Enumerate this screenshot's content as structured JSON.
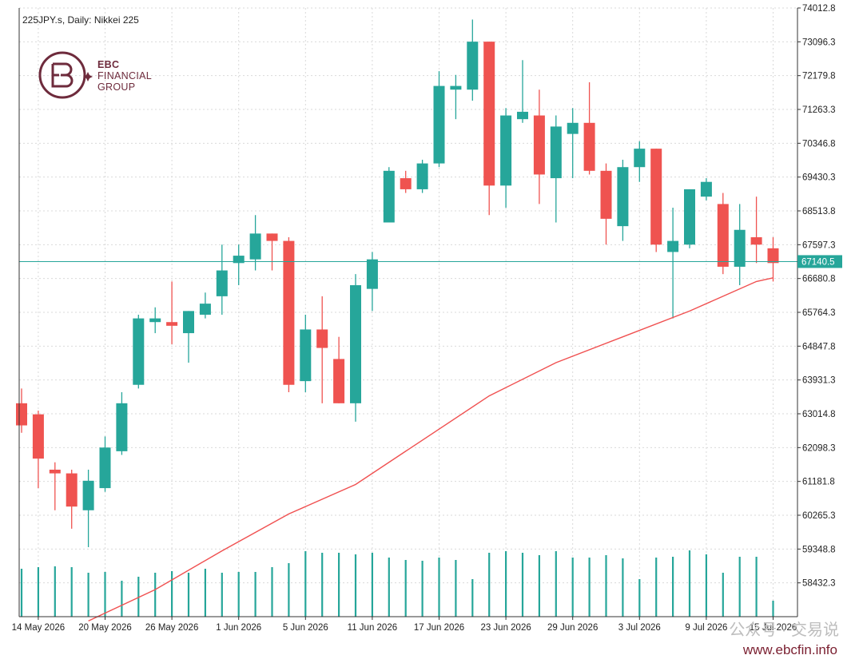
{
  "chart_title": "225JPY.s, Daily:  Nikkei 225",
  "logo": {
    "line1": "EBC",
    "line2": "FINANCIAL",
    "line3": "GROUP"
  },
  "watermark": "公众号 · 交易说",
  "website": "www.ebcfin.info",
  "colors": {
    "bull": "#26a69a",
    "bear": "#ef5350",
    "ma": "#f05050",
    "price_line": "#26a69a",
    "volume": "#26a69a"
  },
  "chart_data": {
    "type": "candlestick",
    "symbol": "225JPY.s",
    "timeframe": "Daily",
    "instrument": "Nikkei 225",
    "current_price": "67140.5",
    "ylim": [
      57516,
      74013
    ],
    "y_ticks": [
      "74012.8",
      "73096.3",
      "72179.8",
      "71263.3",
      "70346.8",
      "69430.3",
      "68513.8",
      "67597.3",
      "66680.8",
      "65764.3",
      "64847.8",
      "63931.3",
      "63014.8",
      "62098.3",
      "61181.8",
      "60265.3",
      "59348.8",
      "58432.3"
    ],
    "x_ticks": [
      "14 May 2026",
      "20 May 2026",
      "26 May 2026",
      "1 Jun 2026",
      "5 Jun 2026",
      "11 Jun 2026",
      "17 Jun 2026",
      "23 Jun 2026",
      "29 Jun 2026",
      "3 Jul 2026",
      "9 Jul 2026",
      "15 Jul 2026"
    ],
    "x_tick_index": [
      1,
      5,
      9,
      13,
      17,
      21,
      25,
      29,
      33,
      37,
      41,
      45
    ],
    "candles": [
      {
        "o": 63300,
        "h": 63700,
        "l": 62500,
        "c": 62700
      },
      {
        "o": 63000,
        "h": 63100,
        "l": 61000,
        "c": 61800
      },
      {
        "o": 61500,
        "h": 61700,
        "l": 60400,
        "c": 61400
      },
      {
        "o": 61400,
        "h": 61500,
        "l": 59900,
        "c": 60500
      },
      {
        "o": 60400,
        "h": 61500,
        "l": 59400,
        "c": 61200
      },
      {
        "o": 61000,
        "h": 62400,
        "l": 60900,
        "c": 62100
      },
      {
        "o": 62000,
        "h": 63600,
        "l": 61900,
        "c": 63300
      },
      {
        "o": 63800,
        "h": 65700,
        "l": 63700,
        "c": 65600
      },
      {
        "o": 65500,
        "h": 65900,
        "l": 65200,
        "c": 65600
      },
      {
        "o": 65500,
        "h": 66600,
        "l": 64900,
        "c": 65400
      },
      {
        "o": 65200,
        "h": 65800,
        "l": 64400,
        "c": 65800
      },
      {
        "o": 65700,
        "h": 66300,
        "l": 65600,
        "c": 66000
      },
      {
        "o": 66200,
        "h": 67600,
        "l": 65700,
        "c": 66900
      },
      {
        "o": 67100,
        "h": 67600,
        "l": 66500,
        "c": 67300
      },
      {
        "o": 67200,
        "h": 68400,
        "l": 66900,
        "c": 67900
      },
      {
        "o": 67900,
        "h": 67900,
        "l": 66900,
        "c": 67700
      },
      {
        "o": 67700,
        "h": 67800,
        "l": 63600,
        "c": 63800
      },
      {
        "o": 63900,
        "h": 65700,
        "l": 63600,
        "c": 65300
      },
      {
        "o": 65300,
        "h": 66200,
        "l": 63300,
        "c": 64800
      },
      {
        "o": 64500,
        "h": 65100,
        "l": 63300,
        "c": 63300
      },
      {
        "o": 63300,
        "h": 66800,
        "l": 62800,
        "c": 66500
      },
      {
        "o": 66400,
        "h": 67400,
        "l": 65800,
        "c": 67200
      },
      {
        "o": 68200,
        "h": 69700,
        "l": 68200,
        "c": 69600
      },
      {
        "o": 69400,
        "h": 69600,
        "l": 69000,
        "c": 69100
      },
      {
        "o": 69100,
        "h": 69900,
        "l": 69000,
        "c": 69800
      },
      {
        "o": 69800,
        "h": 72300,
        "l": 69700,
        "c": 71900
      },
      {
        "o": 71800,
        "h": 72200,
        "l": 71000,
        "c": 71900
      },
      {
        "o": 71800,
        "h": 73700,
        "l": 71500,
        "c": 73100
      },
      {
        "o": 73100,
        "h": 73100,
        "l": 68400,
        "c": 69200
      },
      {
        "o": 69200,
        "h": 71300,
        "l": 68600,
        "c": 71100
      },
      {
        "o": 71000,
        "h": 72600,
        "l": 70900,
        "c": 71200
      },
      {
        "o": 71100,
        "h": 71800,
        "l": 68700,
        "c": 69500
      },
      {
        "o": 69400,
        "h": 71100,
        "l": 68200,
        "c": 70800
      },
      {
        "o": 70600,
        "h": 71300,
        "l": 69400,
        "c": 70900
      },
      {
        "o": 70900,
        "h": 72000,
        "l": 69500,
        "c": 69600
      },
      {
        "o": 69600,
        "h": 69800,
        "l": 67600,
        "c": 68300
      },
      {
        "o": 68100,
        "h": 69900,
        "l": 67700,
        "c": 69700
      },
      {
        "o": 69700,
        "h": 70400,
        "l": 69300,
        "c": 70200
      },
      {
        "o": 70200,
        "h": 70200,
        "l": 67400,
        "c": 67600
      },
      {
        "o": 67400,
        "h": 68600,
        "l": 65600,
        "c": 67700
      },
      {
        "o": 67600,
        "h": 69100,
        "l": 67500,
        "c": 69100
      },
      {
        "o": 68900,
        "h": 69400,
        "l": 68800,
        "c": 69300
      },
      {
        "o": 68700,
        "h": 69000,
        "l": 66800,
        "c": 67000
      },
      {
        "o": 67000,
        "h": 68700,
        "l": 66500,
        "c": 68000
      },
      {
        "o": 67800,
        "h": 68900,
        "l": 67100,
        "c": 67600
      },
      {
        "o": 67500,
        "h": 67800,
        "l": 66600,
        "c": 67100
      }
    ],
    "volume": [
      60,
      62,
      63,
      62,
      55,
      56,
      45,
      50,
      55,
      57,
      55,
      60,
      55,
      56,
      56,
      62,
      67,
      82,
      80,
      80,
      78,
      80,
      74,
      71,
      70,
      74,
      71,
      47,
      80,
      82,
      80,
      77,
      82,
      74,
      74,
      77,
      73,
      47,
      74,
      75,
      83,
      78,
      55,
      75,
      75,
      20
    ],
    "moving_average": {
      "index": [
        4,
        8,
        12,
        16,
        20,
        24,
        28,
        32,
        36,
        40,
        44,
        45
      ],
      "values": [
        57400,
        58250,
        59300,
        60300,
        61100,
        62300,
        63500,
        64400,
        65100,
        65800,
        66600,
        66700
      ]
    }
  }
}
